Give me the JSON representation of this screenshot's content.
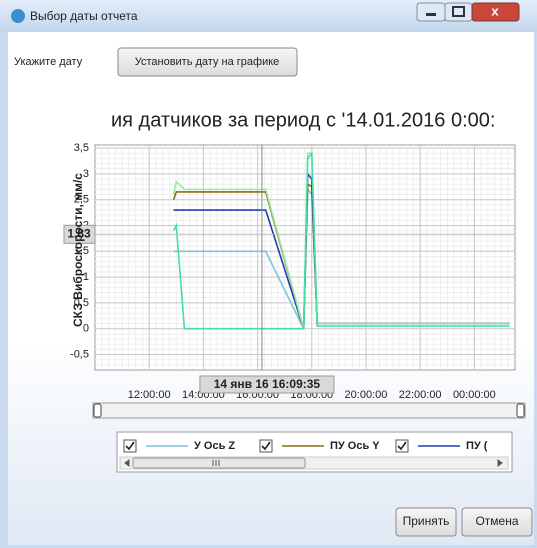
{
  "window": {
    "title": "Выбор даты отчета"
  },
  "toolbar": {
    "label": "Укажите дату",
    "button": "Установить дату на графике"
  },
  "chart_data": {
    "type": "line",
    "title": "ия датчиков за период с '14.01.2016 0:00:",
    "y_label": "СКЗ Виброскорости, мм/с",
    "x": [
      12.9,
      13.0,
      13.3,
      16.3,
      17.7,
      17.85,
      18.0,
      18.2,
      18.4,
      25.3
    ],
    "series": [
      {
        "name": "У Ось Z",
        "color": "#7cc4dc",
        "values": [
          1.5,
          1.5,
          1.5,
          1.5,
          0,
          2.7,
          2.6,
          0.1,
          0.1,
          0.1
        ]
      },
      {
        "name": "ПУ Ось Y",
        "color": "#8b6a1a",
        "values": [
          2.5,
          2.65,
          2.65,
          2.65,
          0,
          2.8,
          2.75,
          0.1,
          0.1,
          0.1
        ]
      },
      {
        "name": "ПУ (",
        "color": "#1c3fb8",
        "values": [
          2.3,
          2.3,
          2.3,
          2.3,
          0,
          3.0,
          2.9,
          0.1,
          0.1,
          0.1
        ]
      },
      {
        "color": "#9be89b",
        "values": [
          2.6,
          2.85,
          2.7,
          2.7,
          0,
          3.4,
          3.4,
          0.1,
          0.1,
          0.1
        ]
      },
      {
        "color": "#45dfa0",
        "values": [
          1.9,
          2.0,
          0,
          0,
          0,
          3.3,
          3.4,
          0.05,
          0.05,
          0.05
        ]
      }
    ],
    "xlim": [
      10,
      25.5
    ],
    "xticks": [
      {
        "value": 12,
        "label": "12:00:00"
      },
      {
        "value": 14,
        "label": "14:00:00"
      },
      {
        "value": 16,
        "label": "16:00:00"
      },
      {
        "value": 18,
        "label": "18:00:00"
      },
      {
        "value": 20,
        "label": "20:00:00"
      },
      {
        "value": 22,
        "label": "22:00:00"
      },
      {
        "value": 24,
        "label": "00:00:00"
      }
    ],
    "ylim": [
      -0.8,
      3.56
    ],
    "yticks": [
      {
        "value": -0.5,
        "label": "-0,5"
      },
      0,
      {
        "value": 0.5,
        "label": "0,5"
      },
      1,
      {
        "value": 1.5,
        "label": "1,5"
      },
      2,
      {
        "value": 2.5,
        "label": "2,5"
      },
      3,
      {
        "value": 3.5,
        "label": "3,5"
      }
    ],
    "grid": true,
    "cursor": {
      "x": 16.16,
      "x_label": "14 янв 16 16:09:35",
      "y": 1.83,
      "y_label": "1,83"
    }
  },
  "buttons": {
    "ok": "Принять",
    "cancel": "Отмена"
  }
}
